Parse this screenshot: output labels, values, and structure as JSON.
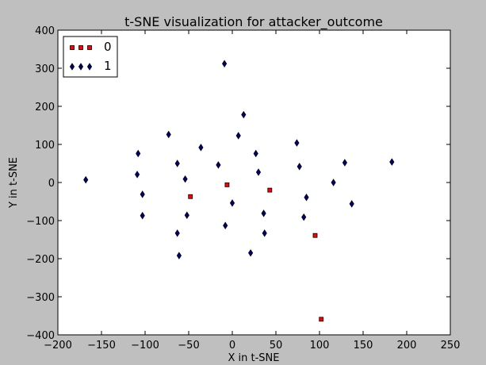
{
  "chart_data": {
    "type": "scatter",
    "title": "t-SNE visualization for attacker_outcome",
    "xlabel": "X in t-SNE",
    "ylabel": "Y in t-SNE",
    "xlim": [
      -200,
      250
    ],
    "ylim": [
      -400,
      400
    ],
    "xticks": [
      "−200",
      "−150",
      "−100",
      "−50",
      "0",
      "50",
      "100",
      "150",
      "200",
      "250"
    ],
    "yticks": [
      "−400",
      "−300",
      "−200",
      "−100",
      "0",
      "100",
      "200",
      "300",
      "400"
    ],
    "grid": false,
    "legend_position": "top-left",
    "series": [
      {
        "name": "0",
        "marker": "square",
        "color": "#ff0000",
        "points": [
          [
            -48,
            -37
          ],
          [
            -6,
            -6
          ],
          [
            43,
            -20
          ],
          [
            95,
            -139
          ],
          [
            102,
            -359
          ]
        ]
      },
      {
        "name": "1",
        "marker": "diamond",
        "color": "#00007f",
        "points": [
          [
            -168,
            7
          ],
          [
            -108,
            76
          ],
          [
            -109,
            21
          ],
          [
            -103,
            -31
          ],
          [
            -103,
            -87
          ],
          [
            -73,
            126
          ],
          [
            -63,
            50
          ],
          [
            -63,
            -133
          ],
          [
            -61,
            -192
          ],
          [
            -54,
            9
          ],
          [
            -52,
            -86
          ],
          [
            -36,
            92
          ],
          [
            -16,
            46
          ],
          [
            -9,
            312
          ],
          [
            -8,
            -113
          ],
          [
            0,
            -54
          ],
          [
            7,
            123
          ],
          [
            13,
            178
          ],
          [
            21,
            -185
          ],
          [
            27,
            76
          ],
          [
            30,
            27
          ],
          [
            36,
            -81
          ],
          [
            37,
            -133
          ],
          [
            74,
            104
          ],
          [
            77,
            42
          ],
          [
            82,
            -91
          ],
          [
            85,
            -39
          ],
          [
            116,
            0
          ],
          [
            129,
            52
          ],
          [
            137,
            -56
          ],
          [
            183,
            54
          ]
        ]
      }
    ]
  }
}
